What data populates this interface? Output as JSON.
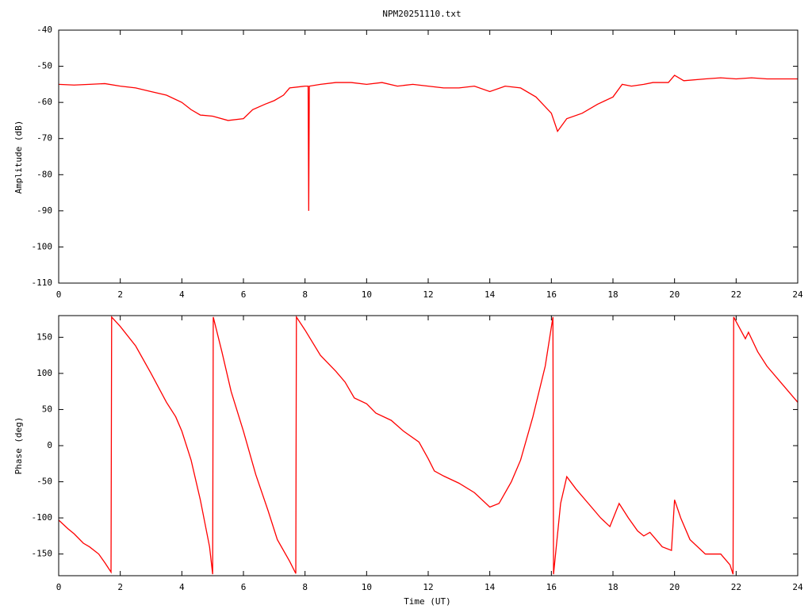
{
  "chart_data": [
    {
      "type": "line",
      "title": "NPM20251110.txt",
      "ylabel": "Amplitude (dB)",
      "xlim": [
        0,
        24
      ],
      "xticks": [
        0,
        2,
        4,
        6,
        8,
        10,
        12,
        14,
        16,
        18,
        20,
        22,
        24
      ],
      "ylim": [
        -110,
        -40
      ],
      "yticks": [
        -40,
        -50,
        -60,
        -70,
        -80,
        -90,
        -100,
        -110
      ],
      "grid": false,
      "series": [
        {
          "color": "#ff0000",
          "x": [
            0,
            0.5,
            1,
            1.5,
            2,
            2.5,
            3,
            3.5,
            4,
            4.3,
            4.6,
            5,
            5.5,
            6,
            6.3,
            6.7,
            7,
            7.3,
            7.5,
            8,
            8.1,
            8.12,
            8.14,
            8.5,
            9,
            9.5,
            10,
            10.5,
            11,
            11.5,
            12,
            12.5,
            13,
            13.5,
            14,
            14.5,
            15,
            15.5,
            16,
            16.2,
            16.5,
            17,
            17.5,
            18,
            18.3,
            18.6,
            19,
            19.3,
            19.8,
            20,
            20.3,
            21,
            21.5,
            22,
            22.5,
            23,
            24
          ],
          "values": [
            -55,
            -55.2,
            -55,
            -54.8,
            -55.5,
            -56,
            -57,
            -58,
            -60,
            -62,
            -63.5,
            -63.8,
            -65,
            -64.5,
            -62,
            -60.5,
            -59.5,
            -58,
            -56,
            -55.5,
            -55.5,
            -90,
            -55.5,
            -55,
            -54.5,
            -54.5,
            -55,
            -54.5,
            -55.5,
            -55,
            -55.5,
            -56,
            -56,
            -55.5,
            -57,
            -55.5,
            -56,
            -58.5,
            -63,
            -68,
            -64.5,
            -63,
            -60.5,
            -58.5,
            -55,
            -55.5,
            -55,
            -54.5,
            -54.5,
            -52.5,
            -54,
            -53.5,
            -53.2,
            -53.5,
            -53.2,
            -53.5,
            -53.5
          ]
        }
      ]
    },
    {
      "type": "line",
      "ylabel": "Phase (deg)",
      "xlabel": "Time (UT)",
      "xlim": [
        0,
        24
      ],
      "xticks": [
        0,
        2,
        4,
        6,
        8,
        10,
        12,
        14,
        16,
        18,
        20,
        22,
        24
      ],
      "ylim": [
        -180,
        180
      ],
      "yticks": [
        150,
        100,
        50,
        0,
        -50,
        -100,
        -150
      ],
      "grid": false,
      "series": [
        {
          "color": "#ff0000",
          "x": [
            0,
            0.3,
            0.5,
            0.8,
            1,
            1.3,
            1.5,
            1.7,
            1.72,
            2,
            2.5,
            3,
            3.5,
            3.8,
            4,
            4.3,
            4.6,
            4.9,
            5,
            5.02,
            5.3,
            5.6,
            6,
            6.4,
            6.8,
            7.1,
            7.5,
            7.7,
            7.72,
            8,
            8.5,
            9,
            9.3,
            9.6,
            10,
            10.3,
            10.8,
            11.2,
            11.7,
            12,
            12.2,
            12.5,
            13,
            13.5,
            14,
            14.3,
            14.7,
            15,
            15.4,
            15.8,
            16.05,
            16.07,
            16.3,
            16.5,
            16.8,
            17.2,
            17.6,
            17.9,
            18.2,
            18.5,
            18.8,
            19,
            19.2,
            19.6,
            19.9,
            20,
            20.2,
            20.5,
            21,
            21.5,
            21.8,
            21.9,
            21.92,
            22.3,
            22.4,
            22.7,
            23,
            23.5,
            24
          ],
          "values": [
            -103,
            -115,
            -122,
            -135,
            -140,
            -150,
            -162,
            -175,
            178,
            165,
            138,
            100,
            60,
            40,
            20,
            -20,
            -75,
            -140,
            -178,
            178,
            130,
            75,
            20,
            -40,
            -90,
            -130,
            -160,
            -177,
            178,
            160,
            125,
            103,
            88,
            66,
            58,
            45,
            35,
            20,
            5,
            -18,
            -35,
            -42,
            -52,
            -65,
            -85,
            -80,
            -50,
            -20,
            40,
            110,
            178,
            -178,
            -80,
            -43,
            -60,
            -80,
            -100,
            -112,
            -80,
            -100,
            -118,
            -125,
            -120,
            -140,
            -145,
            -75,
            -100,
            -130,
            -150,
            -150,
            -165,
            -178,
            178,
            148,
            157,
            130,
            110,
            85,
            60
          ]
        }
      ]
    }
  ]
}
